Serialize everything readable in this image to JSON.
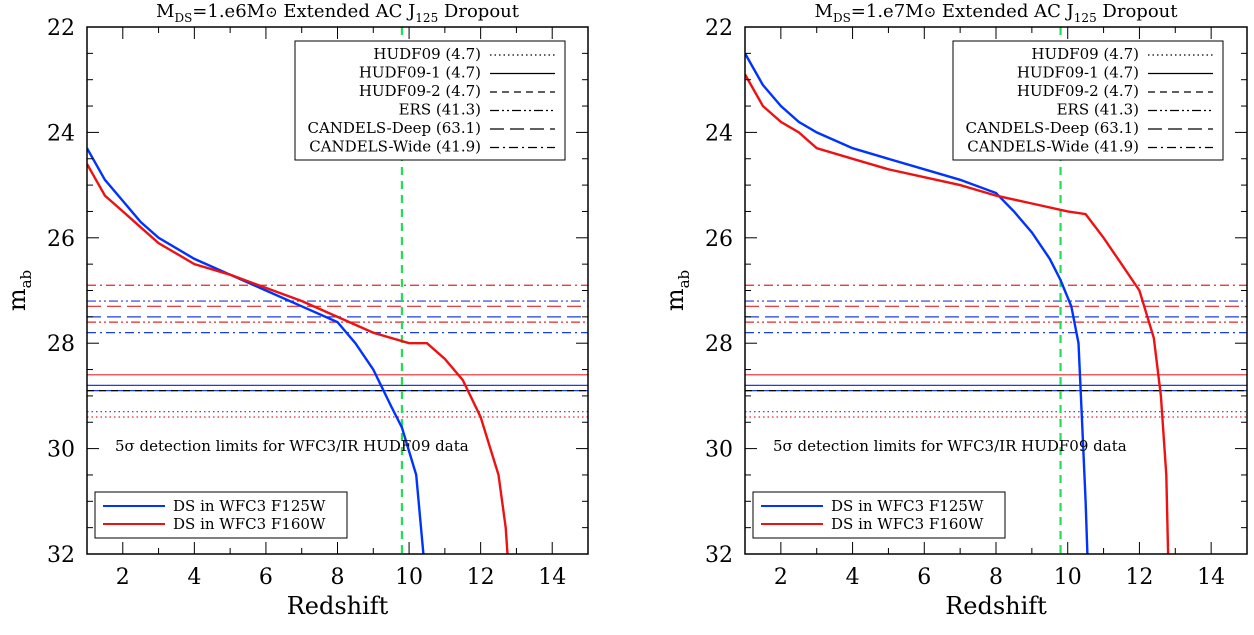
{
  "chart_data": [
    {
      "type": "line",
      "title": "M_DS=1.e6M⊙  Extended AC  J125 Dropout",
      "title_parts": {
        "m": "M",
        "ds": "DS",
        "eq": "=1.e6M",
        "sun": "⊙",
        "mid": "  Extended AC  J",
        "j": "125",
        "end": " Dropout"
      },
      "xlabel": "Redshift",
      "ylabel": "m",
      "ylabel_sub": "ab",
      "xlim": [
        1,
        15
      ],
      "ylim": [
        32,
        22
      ],
      "xticks": [
        2,
        4,
        6,
        8,
        10,
        12,
        14
      ],
      "yticks": [
        22,
        24,
        26,
        28,
        30,
        32
      ],
      "xtick_labels": [
        "2",
        "4",
        "6",
        "8",
        "10",
        "12",
        "14"
      ],
      "ytick_labels": [
        "22",
        "24",
        "26",
        "28",
        "30",
        "32"
      ],
      "grid": false,
      "annotation": "5σ detection limits for WFC3/IR HUDF09 data",
      "vertical_line": {
        "x": 9.8,
        "color": "#22dd55",
        "style": "dashed"
      },
      "series": [
        {
          "name": "DS in WFC3 F125W",
          "color": "#0033ff",
          "x": [
            1,
            1.5,
            2,
            2.5,
            3,
            4,
            5,
            6,
            7,
            8,
            8.5,
            9,
            9.5,
            9.8,
            10.2,
            10.4
          ],
          "y": [
            24.3,
            24.9,
            25.3,
            25.7,
            26.0,
            26.4,
            26.7,
            27.0,
            27.3,
            27.6,
            28.0,
            28.5,
            29.2,
            29.6,
            30.5,
            32.0
          ]
        },
        {
          "name": "DS in WFC3 F160W",
          "color": "#ee1111",
          "x": [
            1,
            1.5,
            2,
            2.5,
            3,
            3.5,
            4,
            5,
            6,
            7,
            8,
            9,
            10,
            10.5,
            11,
            11.5,
            12,
            12.5,
            12.7,
            12.75
          ],
          "y": [
            24.6,
            25.2,
            25.5,
            25.8,
            26.1,
            26.3,
            26.5,
            26.7,
            26.95,
            27.2,
            27.5,
            27.8,
            28.0,
            28.0,
            28.3,
            28.7,
            29.4,
            30.5,
            31.5,
            32.0
          ]
        }
      ],
      "legend_top": {
        "placement": "top-right",
        "entries": [
          {
            "label": "HUDF09 (4.7)",
            "style": "dotted"
          },
          {
            "label": "HUDF09-1 (4.7)",
            "style": "solid"
          },
          {
            "label": "HUDF09-2 (4.7)",
            "style": "dashed"
          },
          {
            "label": "ERS (41.3)",
            "style": "dash-dot-dot"
          },
          {
            "label": "CANDELS-Deep (63.1)",
            "style": "long-dash"
          },
          {
            "label": "CANDELS-Wide (41.9)",
            "style": "dash-dot"
          }
        ]
      },
      "legend_bottom": {
        "placement": "bottom-left"
      },
      "limits": {
        "blue": [
          27.2,
          27.5,
          27.8,
          28.8,
          28.9,
          29.3
        ],
        "red": [
          26.9,
          27.3,
          27.6,
          28.6,
          29.4
        ],
        "black": [
          28.9
        ]
      }
    },
    {
      "type": "line",
      "title": "M_DS=1.e7M⊙  Extended AC  J125 Dropout",
      "title_parts": {
        "m": "M",
        "ds": "DS",
        "eq": "=1.e7M",
        "sun": "⊙",
        "mid": "  Extended AC  J",
        "j": "125",
        "end": " Dropout"
      },
      "xlabel": "Redshift",
      "ylabel": "m",
      "ylabel_sub": "ab",
      "xlim": [
        1,
        15
      ],
      "ylim": [
        32,
        22
      ],
      "xticks": [
        2,
        4,
        6,
        8,
        10,
        12,
        14
      ],
      "yticks": [
        22,
        24,
        26,
        28,
        30,
        32
      ],
      "xtick_labels": [
        "2",
        "4",
        "6",
        "8",
        "10",
        "12",
        "14"
      ],
      "ytick_labels": [
        "22",
        "24",
        "26",
        "28",
        "30",
        "32"
      ],
      "grid": false,
      "annotation": "5σ detection limits for WFC3/IR HUDF09 data",
      "vertical_line": {
        "x": 9.8,
        "color": "#22dd55",
        "style": "dashed"
      },
      "series": [
        {
          "name": "DS in WFC3 F125W",
          "color": "#0033ff",
          "x": [
            1,
            1.5,
            2,
            2.5,
            3,
            4,
            5,
            6,
            7,
            8,
            8.5,
            9,
            9.5,
            9.8,
            10.1,
            10.3,
            10.4,
            10.5,
            10.55
          ],
          "y": [
            22.5,
            23.1,
            23.5,
            23.8,
            24.0,
            24.3,
            24.5,
            24.7,
            24.9,
            25.15,
            25.5,
            25.9,
            26.4,
            26.8,
            27.3,
            28.0,
            29.5,
            31.0,
            32.0
          ]
        },
        {
          "name": "DS in WFC3 F160W",
          "color": "#ee1111",
          "x": [
            1,
            1.5,
            2,
            2.5,
            3,
            4,
            5,
            6,
            7,
            8,
            9,
            10,
            10.5,
            11,
            11.5,
            12,
            12.4,
            12.6,
            12.75,
            12.8
          ],
          "y": [
            22.9,
            23.5,
            23.8,
            24.0,
            24.3,
            24.5,
            24.7,
            24.85,
            25.0,
            25.2,
            25.35,
            25.5,
            25.55,
            26.0,
            26.5,
            27.0,
            27.9,
            29.0,
            30.5,
            32.0
          ]
        }
      ],
      "legend_top": {
        "placement": "top-right",
        "entries": [
          {
            "label": "HUDF09 (4.7)",
            "style": "dotted"
          },
          {
            "label": "HUDF09-1 (4.7)",
            "style": "solid"
          },
          {
            "label": "HUDF09-2 (4.7)",
            "style": "dashed"
          },
          {
            "label": "ERS (41.3)",
            "style": "dash-dot-dot"
          },
          {
            "label": "CANDELS-Deep (63.1)",
            "style": "long-dash"
          },
          {
            "label": "CANDELS-Wide (41.9)",
            "style": "dash-dot"
          }
        ]
      },
      "legend_bottom": {
        "placement": "bottom-left"
      },
      "limits": {
        "blue": [
          27.2,
          27.5,
          27.8,
          28.8,
          28.9,
          29.3
        ],
        "red": [
          26.9,
          27.3,
          27.6,
          28.6,
          29.4
        ],
        "black": [
          28.9
        ]
      }
    }
  ]
}
